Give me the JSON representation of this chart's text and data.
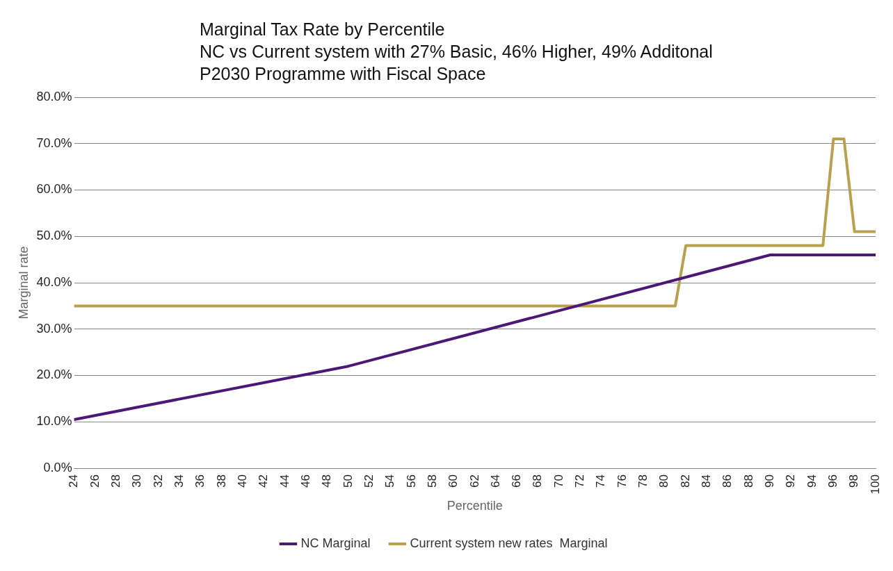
{
  "chart_data": {
    "type": "line",
    "title": "Marginal Tax Rate by Percentile",
    "subtitle": "NC vs Current system with 27% Basic, 46% Higher, 49% Additonal\nP2030 Programme with Fiscal Space",
    "xlabel": "Percentile",
    "ylabel": "Marginal rate",
    "xlim": [
      24,
      100
    ],
    "xticks": [
      24,
      26,
      28,
      30,
      32,
      34,
      36,
      38,
      40,
      42,
      44,
      46,
      48,
      50,
      52,
      54,
      56,
      58,
      60,
      62,
      64,
      66,
      68,
      70,
      72,
      74,
      76,
      78,
      80,
      82,
      84,
      86,
      88,
      90,
      92,
      94,
      96,
      98,
      100
    ],
    "ylim": [
      0,
      80
    ],
    "yticks": [
      {
        "value": 0,
        "label": "0.0%"
      },
      {
        "value": 10,
        "label": "10.0%"
      },
      {
        "value": 20,
        "label": "20.0%"
      },
      {
        "value": 30,
        "label": "30.0%"
      },
      {
        "value": 40,
        "label": "40.0%"
      },
      {
        "value": 50,
        "label": "50.0%"
      },
      {
        "value": 60,
        "label": "60.0%"
      },
      {
        "value": 70,
        "label": "70.0%"
      },
      {
        "value": 80,
        "label": "80.0%"
      }
    ],
    "grid": "y",
    "legend": "bottom",
    "marker": "none",
    "line_style": "solid",
    "series": [
      {
        "name": "NC Marginal",
        "color": "#4b1878",
        "x": [
          24,
          50,
          90,
          91,
          100
        ],
        "values": [
          10.5,
          22,
          46,
          46,
          46
        ]
      },
      {
        "name": "Current system new rates  Marginal",
        "color": "#b9a04c",
        "x": [
          24,
          80,
          81,
          82,
          83,
          94,
          95,
          96,
          97,
          98,
          99,
          100
        ],
        "values": [
          35,
          35,
          35,
          48,
          48,
          48,
          48,
          71,
          71,
          51,
          51,
          51
        ]
      }
    ]
  }
}
